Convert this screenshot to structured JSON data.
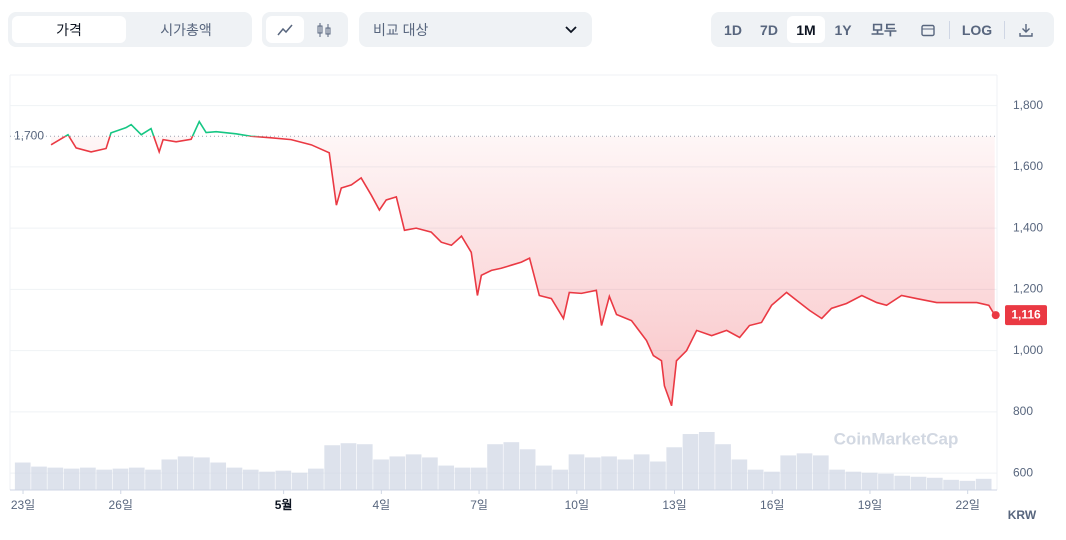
{
  "toolbar": {
    "tabs": [
      "가격",
      "시가총액"
    ],
    "compare": "비교 대상",
    "ranges": [
      "1D",
      "7D",
      "1M",
      "1Y",
      "모두"
    ],
    "log": "LOG"
  },
  "chart_data": {
    "type": "line",
    "x": [
      0.86,
      1.38,
      1.63,
      2.09,
      2.55,
      2.7,
      3.16,
      3.32,
      3.63,
      3.93,
      4.18,
      4.3,
      4.7,
      5.16,
      5.41,
      5.62,
      5.93,
      6.54,
      7.0,
      7.62,
      8.23,
      8.85,
      9.4,
      9.62,
      9.77,
      10.08,
      10.38,
      10.69,
      10.94,
      11.15,
      11.46,
      11.71,
      12.07,
      12.53,
      12.84,
      13.15,
      13.46,
      13.76,
      13.95,
      14.07,
      14.38,
      14.68,
      14.99,
      15.3,
      15.55,
      15.85,
      16.22,
      16.59,
      16.77,
      17.14,
      17.6,
      17.76,
      18.0,
      18.22,
      18.68,
      19.14,
      19.35,
      19.6,
      19.69,
      19.91,
      20.06,
      20.37,
      20.68,
      21.14,
      21.6,
      22.0,
      22.3,
      22.67,
      22.98,
      23.44,
      23.75,
      24.15,
      24.52,
      24.82,
      25.28,
      25.75,
      26.21,
      26.51,
      26.97,
      27.43,
      28.05,
      28.66,
      29.28,
      29.65,
      29.83
    ],
    "values": [
      1672,
      1705,
      1662,
      1649,
      1660,
      1711,
      1728,
      1738,
      1705,
      1725,
      1649,
      1689,
      1682,
      1690,
      1748,
      1712,
      1715,
      1708,
      1700,
      1695,
      1689,
      1672,
      1646,
      1475,
      1531,
      1541,
      1564,
      1508,
      1459,
      1492,
      1502,
      1393,
      1400,
      1387,
      1354,
      1344,
      1374,
      1321,
      1180,
      1246,
      1262,
      1269,
      1279,
      1289,
      1302,
      1180,
      1170,
      1105,
      1190,
      1187,
      1197,
      1082,
      1177,
      1118,
      1098,
      1033,
      984,
      967,
      885,
      820,
      967,
      1000,
      1066,
      1049,
      1066,
      1043,
      1082,
      1092,
      1148,
      1190,
      1164,
      1131,
      1105,
      1138,
      1154,
      1180,
      1157,
      1148,
      1180,
      1170,
      1157,
      1157,
      1157,
      1148,
      1116
    ],
    "color": "#ea3943",
    "above_color": "#16c784",
    "baseline": {
      "value": 1700,
      "label": "1,700"
    },
    "current": {
      "value": 1116,
      "label": "1,116"
    },
    "xlim": [
      -0.4,
      29.9
    ],
    "ylim": [
      545,
      1900
    ],
    "xticks": [
      {
        "value": 0,
        "label": "23일"
      },
      {
        "value": 3,
        "label": "26일"
      },
      {
        "value": 8,
        "label": "5월"
      },
      {
        "value": 11,
        "label": "4일"
      },
      {
        "value": 14,
        "label": "7일"
      },
      {
        "value": 17,
        "label": "10일"
      },
      {
        "value": 20,
        "label": "13일"
      },
      {
        "value": 23,
        "label": "16일"
      },
      {
        "value": 26,
        "label": "19일"
      },
      {
        "value": 29,
        "label": "22일"
      }
    ],
    "yticks": [
      600,
      800,
      {
        "value": 1000,
        "label": "1,000"
      },
      {
        "value": 1200,
        "label": "1,200"
      },
      {
        "value": 1400,
        "label": "1,400"
      },
      {
        "value": 1600,
        "label": "1,600"
      },
      {
        "value": 1800,
        "label": "1,800"
      }
    ],
    "grid": true,
    "currency": "KRW",
    "watermark": "CoinMarketCap",
    "volume": {
      "color": "#cfd6e4",
      "x": [
        0,
        0.5,
        1,
        1.5,
        2,
        2.5,
        3,
        3.5,
        4,
        4.5,
        5,
        5.5,
        6,
        6.5,
        7,
        7.5,
        8,
        8.5,
        9,
        9.5,
        10,
        10.5,
        11,
        11.5,
        12,
        12.5,
        13,
        13.5,
        14,
        14.5,
        15,
        15.5,
        16,
        16.5,
        17,
        17.5,
        18,
        18.5,
        19,
        19.5,
        20,
        20.5,
        21,
        21.5,
        22,
        22.5,
        23,
        23.5,
        24,
        24.5,
        25,
        25.5,
        26,
        26.5,
        27,
        27.5,
        28,
        28.5,
        29,
        29.5
      ],
      "values": [
        27,
        23,
        22,
        21,
        22,
        20,
        21,
        22,
        20,
        30,
        33,
        32,
        27,
        22,
        20,
        18,
        19,
        17,
        21,
        44,
        46,
        45,
        30,
        33,
        35,
        32,
        24,
        22,
        22,
        45,
        47,
        40,
        24,
        20,
        35,
        32,
        33,
        30,
        35,
        28,
        42,
        55,
        57,
        45,
        30,
        20,
        18,
        34,
        36,
        34,
        20,
        18,
        17,
        16,
        14,
        13,
        12,
        10,
        9,
        11
      ]
    }
  }
}
